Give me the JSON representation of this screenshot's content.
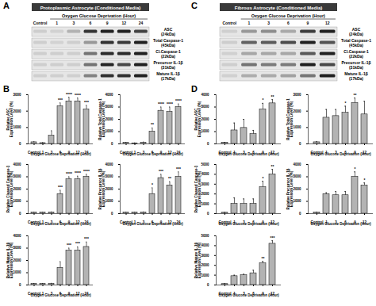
{
  "figure": {
    "panels": [
      {
        "blot_letter": "A",
        "chart_letter": "B",
        "header": "Protoplasmic Astrocyte (Conditioned Media)",
        "blot_xlabel": "Oxygen Glucose Deprivation (Hour)",
        "blot_rows": [
          {
            "name": "ASC",
            "size": "(24kDa)"
          },
          {
            "name": "Total Caspase-1",
            "size": "(45kDa)"
          },
          {
            "name": "Cl.Caspase-1",
            "size": "(22kDa)"
          },
          {
            "name": "Precursor IL-1β",
            "size": "(31kDa)"
          },
          {
            "name": "Mature IL-1β",
            "size": "(17kDa)"
          }
        ]
      },
      {
        "blot_letter": "C",
        "chart_letter": "D",
        "header": "Fibrous Astrocyte (Conditioned Media)",
        "blot_xlabel": "Oxygen Glucose Deprivation (Hour)",
        "blot_rows": [
          {
            "name": "ASC",
            "size": "(24kDa)"
          },
          {
            "name": "Total Caspase-1",
            "size": "(45kDa)"
          },
          {
            "name": "Cl.Caspase-1",
            "size": "(22kDa)"
          },
          {
            "name": "Precursor IL-1β",
            "size": "(31kDa)"
          },
          {
            "name": "Mature IL-1β",
            "size": "(17kDa)"
          }
        ]
      }
    ]
  },
  "chart_data": [
    {
      "type": "bar",
      "ylabel": "Relative ASC\nExpression Level (%)",
      "xlabel": "Oxygen Glucose Deprivation (Hour)",
      "color": "#b3b3b3",
      "categories": [
        "Control",
        "1",
        "3",
        "6",
        "9",
        "12",
        "24"
      ],
      "values": [
        100,
        50,
        500,
        2300,
        2600,
        2600,
        2100
      ],
      "errors": [
        30,
        30,
        300,
        200,
        250,
        200,
        250
      ],
      "annotations": [
        null,
        null,
        null,
        "***",
        "****",
        "****",
        "***"
      ],
      "ylim": [
        0,
        3000
      ],
      "yticks": [
        0,
        1000,
        2000,
        3000
      ]
    },
    {
      "type": "bar",
      "ylabel": "Relative Total Caspase-1\nExpression Level (%)",
      "xlabel": "Oxygen Glucose Deprivation (Hour)",
      "color": "#b3b3b3",
      "categories": [
        "Control",
        "1",
        "3",
        "6",
        "9",
        "12",
        "24"
      ],
      "values": [
        100,
        50,
        100,
        1000,
        2700,
        2600,
        3000
      ],
      "errors": [
        30,
        30,
        50,
        300,
        300,
        400,
        250
      ],
      "annotations": [
        null,
        null,
        null,
        "**",
        "****",
        "****",
        "****"
      ],
      "ylim": [
        0,
        4000
      ],
      "yticks": [
        0,
        1000,
        2000,
        3000,
        4000
      ]
    },
    {
      "type": "bar",
      "ylabel": "Relative Cleaved Caspase-1\nExpression Level (%)",
      "xlabel": "Oxygen Glucose Deprivation (Hour)",
      "color": "#b3b3b3",
      "categories": [
        "Control",
        "1",
        "3",
        "6",
        "9",
        "12",
        "24"
      ],
      "values": [
        100,
        100,
        100,
        1600,
        2800,
        2800,
        3000
      ],
      "errors": [
        30,
        30,
        40,
        300,
        200,
        250,
        200
      ],
      "annotations": [
        null,
        null,
        null,
        "***",
        "****",
        "****",
        "****"
      ],
      "ylim": [
        0,
        4000
      ],
      "yticks": [
        0,
        1000,
        2000,
        3000,
        4000
      ]
    },
    {
      "type": "bar",
      "ylabel": "Relative Precursor IL-1β\nExpression Level (%)",
      "xlabel": "Oxygen Glucose Deprivation (Hour)",
      "color": "#b3b3b3",
      "categories": [
        "Control",
        "1",
        "3",
        "6",
        "9",
        "12",
        "24"
      ],
      "values": [
        100,
        100,
        100,
        1600,
        2900,
        2300,
        3000
      ],
      "errors": [
        30,
        30,
        40,
        500,
        300,
        300,
        400
      ],
      "annotations": [
        null,
        null,
        null,
        "*",
        "***",
        "**",
        "***"
      ],
      "ylim": [
        0,
        4000
      ],
      "yticks": [
        0,
        1000,
        2000,
        3000,
        4000
      ]
    },
    {
      "type": "bar",
      "ylabel": "Relative Mature IL-1β\nExpression Level (%)",
      "xlabel": "Oxygen Glucose Deprivation (Hour)",
      "color": "#b3b3b3",
      "categories": [
        "Control",
        "1",
        "3",
        "6",
        "9",
        "12",
        "24"
      ],
      "values": [
        100,
        100,
        100,
        1400,
        2800,
        2800,
        3100
      ],
      "errors": [
        30,
        30,
        40,
        500,
        200,
        300,
        400
      ],
      "annotations": [
        null,
        null,
        null,
        null,
        "***",
        "***",
        "***"
      ],
      "ylim": [
        0,
        4000
      ],
      "yticks": [
        0,
        1000,
        2000,
        3000,
        4000
      ]
    },
    {
      "type": "bar",
      "ylabel": "Relative ASC\nExpression Level (%)",
      "xlabel": "Oxygen Glucose Deprivation (Hour)",
      "color": "#b3b3b3",
      "categories": [
        "Control",
        "1",
        "3",
        "6",
        "9",
        "12"
      ],
      "values": [
        100,
        1100,
        1300,
        800,
        2800,
        3300
      ],
      "errors": [
        30,
        600,
        700,
        300,
        500,
        300
      ],
      "annotations": [
        null,
        null,
        null,
        null,
        "*",
        "**"
      ],
      "ylim": [
        0,
        4000
      ],
      "yticks": [
        0,
        1000,
        2000,
        3000,
        4000
      ]
    },
    {
      "type": "bar",
      "ylabel": "Relative Total Caspase-1\nExpression Level (%)",
      "xlabel": "Oxygen Glucose Deprivation (Hour)",
      "color": "#b3b3b3",
      "categories": [
        "Control",
        "1",
        "3",
        "6",
        "9",
        "12"
      ],
      "values": [
        100,
        1600,
        1700,
        1900,
        2500,
        1800
      ],
      "errors": [
        30,
        500,
        400,
        400,
        300,
        800
      ],
      "annotations": [
        null,
        null,
        null,
        "*",
        "**",
        null
      ],
      "ylim": [
        0,
        3000
      ],
      "yticks": [
        0,
        1000,
        2000,
        3000
      ]
    },
    {
      "type": "bar",
      "ylabel": "Relative Cleaved Caspase-1\nExpression Level (%)",
      "xlabel": "Oxygen Glucose Deprivation (Hour)",
      "color": "#b3b3b3",
      "categories": [
        "Control",
        "1",
        "3",
        "6",
        "9",
        "12"
      ],
      "values": [
        100,
        1000,
        1000,
        1000,
        2700,
        4000
      ],
      "errors": [
        30,
        600,
        500,
        500,
        600,
        500
      ],
      "annotations": [
        null,
        null,
        null,
        null,
        "*",
        "**"
      ],
      "ylim": [
        0,
        5000
      ],
      "yticks": [
        0,
        1000,
        2000,
        3000,
        4000,
        5000
      ]
    },
    {
      "type": "bar",
      "ylabel": "Relative Precursor IL-1β\nExpression Level (%)",
      "xlabel": "Oxygen Glucose Deprivation (Hour)",
      "color": "#b3b3b3",
      "categories": [
        "Control",
        "1",
        "3",
        "6",
        "9",
        "12"
      ],
      "values": [
        100,
        1600,
        1500,
        1500,
        3000,
        2300
      ],
      "errors": [
        30,
        100,
        300,
        300,
        400,
        200
      ],
      "annotations": [
        null,
        null,
        null,
        null,
        "*",
        "*"
      ],
      "ylim": [
        0,
        4000
      ],
      "yticks": [
        0,
        1000,
        2000,
        3000,
        4000
      ]
    },
    {
      "type": "bar",
      "ylabel": "Relative Mature IL-1β\nExpression Level (%)",
      "xlabel": "Oxygen Glucose Deprivation (Hour)",
      "color": "#b3b3b3",
      "categories": [
        "Control",
        "1",
        "3",
        "6",
        "9",
        "12"
      ],
      "values": [
        100,
        900,
        1000,
        1200,
        2200,
        4200
      ],
      "errors": [
        30,
        100,
        100,
        300,
        200,
        300
      ],
      "annotations": [
        null,
        null,
        null,
        null,
        "**",
        "***"
      ],
      "ylim": [
        0,
        5000
      ],
      "yticks": [
        0,
        1000,
        2000,
        3000,
        4000,
        5000
      ]
    }
  ]
}
